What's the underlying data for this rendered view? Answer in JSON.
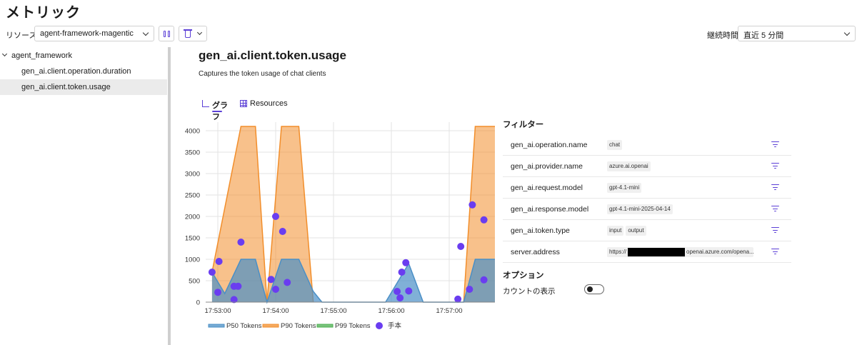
{
  "page": {
    "title": "メトリック"
  },
  "toolbar": {
    "resource_label": "リソース",
    "resource_value": "agent-framework-magentic",
    "duration_label": "継続時間",
    "duration_value": "直近 5 分間"
  },
  "sidebar": {
    "root": "agent_framework",
    "items": [
      {
        "label": "gen_ai.client.operation.duration"
      },
      {
        "label": "gen_ai.client.token.usage"
      }
    ]
  },
  "metric": {
    "title": "gen_ai.client.token.usage",
    "description": "Captures the token usage of chat clients"
  },
  "tabs": {
    "graph": "グラフ",
    "resources": "Resources"
  },
  "colors": {
    "accent": "#5b3fd6",
    "p50": "#4a8fc6",
    "p90": "#f28e2b",
    "p99": "#4caf50",
    "exemplar": "#6a3df0"
  },
  "chart_data": {
    "type": "area",
    "x_ticks": [
      "17:53:00",
      "17:54:00",
      "17:55:00",
      "17:56:00",
      "17:57:00"
    ],
    "ylim": [
      0,
      4000
    ],
    "y_ticks": [
      0,
      500,
      1000,
      1500,
      2000,
      2500,
      3000,
      3500,
      4000
    ],
    "grid": true,
    "legend_position": "bottom",
    "series": [
      {
        "name": "P50 Tokens",
        "x": [
          -0.1,
          0.12,
          0.4,
          0.65,
          0.85,
          1.1,
          1.4,
          1.65,
          1.8,
          2.15,
          2.45,
          2.9,
          3.3,
          3.55,
          3.75,
          4.25,
          4.45,
          4.85,
          5.2,
          5.55,
          6.0,
          7.5,
          8.5
        ],
        "values": [
          700,
          200,
          1000,
          1000,
          0,
          1000,
          1000,
          250,
          0,
          0,
          0,
          0,
          900,
          0,
          0,
          0,
          1000,
          1000,
          0,
          0,
          0,
          0,
          0
        ]
      },
      {
        "name": "P90 Tokens",
        "x": [
          -0.1,
          0.4,
          0.65,
          0.85,
          1.1,
          1.4,
          1.65,
          4.25,
          4.45,
          4.85,
          5.2
        ],
        "values": [
          700,
          4100,
          4100,
          0,
          4100,
          4100,
          0,
          0,
          4100,
          4100,
          0
        ],
        "gaps": [
          [
            1.65,
            4.25
          ]
        ]
      },
      {
        "name": "P99 Tokens",
        "x": [],
        "values": []
      }
    ],
    "exemplars_label": "手本",
    "exemplars": [
      {
        "x": -0.1,
        "y": 700
      },
      {
        "x": 0.02,
        "y": 950
      },
      {
        "x": 0.0,
        "y": 230
      },
      {
        "x": 0.28,
        "y": 370
      },
      {
        "x": 0.35,
        "y": 370
      },
      {
        "x": 0.28,
        "y": 60
      },
      {
        "x": 0.4,
        "y": 1400
      },
      {
        "x": 1.0,
        "y": 2000
      },
      {
        "x": 1.12,
        "y": 1650
      },
      {
        "x": 0.92,
        "y": 530
      },
      {
        "x": 1.0,
        "y": 300
      },
      {
        "x": 1.2,
        "y": 460
      },
      {
        "x": 3.1,
        "y": 250
      },
      {
        "x": 3.18,
        "y": 700
      },
      {
        "x": 3.25,
        "y": 920
      },
      {
        "x": 3.3,
        "y": 260
      },
      {
        "x": 3.15,
        "y": 100
      },
      {
        "x": 4.2,
        "y": 1300
      },
      {
        "x": 4.4,
        "y": 2270
      },
      {
        "x": 4.6,
        "y": 1920
      },
      {
        "x": 4.35,
        "y": 300
      },
      {
        "x": 4.6,
        "y": 520
      },
      {
        "x": 4.15,
        "y": 70
      }
    ]
  },
  "filters": {
    "title": "フィルター",
    "rows": [
      {
        "name": "gen_ai.operation.name",
        "values": [
          "chat"
        ]
      },
      {
        "name": "gen_ai.provider.name",
        "values": [
          "azure.ai.openai"
        ]
      },
      {
        "name": "gen_ai.request.model",
        "values": [
          "gpt-4.1-mini"
        ]
      },
      {
        "name": "gen_ai.response.model",
        "values": [
          "gpt-4.1-mini-2025-04-14"
        ]
      },
      {
        "name": "gen_ai.token.type",
        "values": [
          "input",
          "output"
        ]
      },
      {
        "name": "server.address",
        "values": [
          "https://",
          "openai.azure.com/opena..."
        ]
      }
    ]
  },
  "options": {
    "title": "オプション",
    "count_label": "カウントの表示",
    "count_enabled": false
  }
}
